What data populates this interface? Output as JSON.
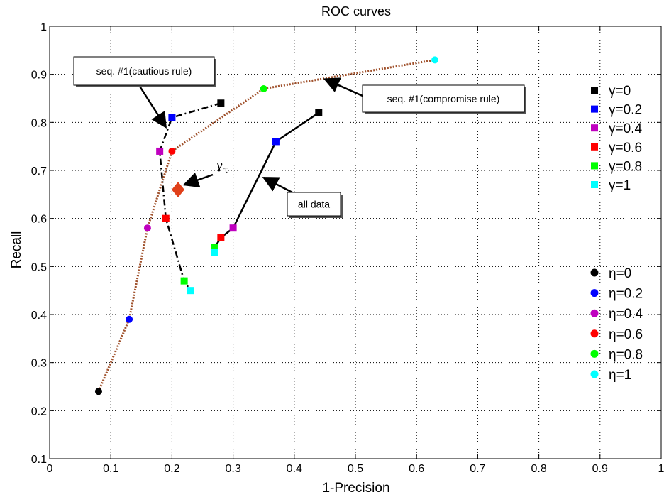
{
  "chart_data": {
    "type": "scatter",
    "title": "ROC curves",
    "xlabel": "1-Precision",
    "ylabel": "Recall",
    "xlim": [
      0,
      1
    ],
    "ylim": [
      0.1,
      1
    ],
    "xticks": [
      "0",
      "0.1",
      "0.2",
      "0.3",
      "0.4",
      "0.5",
      "0.6",
      "0.7",
      "0.8",
      "0.9",
      "1"
    ],
    "yticks": [
      "0.1",
      "0.2",
      "0.3",
      "0.4",
      "0.5",
      "0.6",
      "0.7",
      "0.8",
      "0.9",
      "1"
    ],
    "grid": true,
    "colors": {
      "c0": "#000000",
      "c02": "#0000ff",
      "c04": "#bf00bf",
      "c06": "#ff0000",
      "c08": "#00ff00",
      "c1": "#00ffff",
      "compromise": "#a0522d",
      "gamma_tau": "#e0401a"
    },
    "series": [
      {
        "name": "seq. #1(cautious rule)",
        "line_style": "dash-dot",
        "line_color": "#000000",
        "marker": "square",
        "points": [
          {
            "x": 0.28,
            "y": 0.84,
            "level": "c0"
          },
          {
            "x": 0.2,
            "y": 0.81,
            "level": "c02"
          },
          {
            "x": 0.18,
            "y": 0.74,
            "level": "c04"
          },
          {
            "x": 0.19,
            "y": 0.6,
            "level": "c06"
          },
          {
            "x": 0.22,
            "y": 0.47,
            "level": "c08"
          },
          {
            "x": 0.23,
            "y": 0.45,
            "level": "c1"
          }
        ]
      },
      {
        "name": "all data",
        "line_style": "solid",
        "line_color": "#000000",
        "marker": "square",
        "points": [
          {
            "x": 0.44,
            "y": 0.82,
            "level": "c0"
          },
          {
            "x": 0.37,
            "y": 0.76,
            "level": "c02"
          },
          {
            "x": 0.3,
            "y": 0.58,
            "level": "c04"
          },
          {
            "x": 0.28,
            "y": 0.56,
            "level": "c06"
          },
          {
            "x": 0.27,
            "y": 0.54,
            "level": "c08"
          },
          {
            "x": 0.27,
            "y": 0.53,
            "level": "c1"
          }
        ]
      },
      {
        "name": "seq. #1(compromise rule)",
        "line_style": "dotted",
        "line_color": "#a0522d",
        "marker": "circle",
        "points": [
          {
            "x": 0.08,
            "y": 0.24,
            "level": "c0"
          },
          {
            "x": 0.13,
            "y": 0.39,
            "level": "c02"
          },
          {
            "x": 0.16,
            "y": 0.58,
            "level": "c04"
          },
          {
            "x": 0.2,
            "y": 0.74,
            "level": "c06"
          },
          {
            "x": 0.35,
            "y": 0.87,
            "level": "c08"
          },
          {
            "x": 0.63,
            "y": 0.93,
            "level": "c1"
          }
        ]
      }
    ],
    "gamma_tau": {
      "x": 0.21,
      "y": 0.66,
      "label_main": "γ",
      "label_sub": "τ"
    },
    "annotations": [
      {
        "text": "seq. #1(cautious rule)",
        "target": {
          "x": 0.19,
          "y": 0.79
        }
      },
      {
        "text": "seq. #1(compromise rule)",
        "target": {
          "x": 0.45,
          "y": 0.89
        }
      },
      {
        "text": "all data",
        "target": {
          "x": 0.35,
          "y": 0.685
        }
      },
      {
        "text": "",
        "target": {
          "x": 0.22,
          "y": 0.67
        }
      }
    ],
    "legend_gamma": {
      "placement": "right-upper",
      "marker": "square",
      "entries": [
        {
          "label": "γ=0",
          "level": "c0"
        },
        {
          "label": "γ=0.2",
          "level": "c02"
        },
        {
          "label": "γ=0.4",
          "level": "c04"
        },
        {
          "label": "γ=0.6",
          "level": "c06"
        },
        {
          "label": "γ=0.8",
          "level": "c08"
        },
        {
          "label": "γ=1",
          "level": "c1"
        }
      ]
    },
    "legend_eta": {
      "placement": "right-lower",
      "marker": "circle",
      "entries": [
        {
          "label": "η=0",
          "level": "c0"
        },
        {
          "label": "η=0.2",
          "level": "c02"
        },
        {
          "label": "η=0.4",
          "level": "c04"
        },
        {
          "label": "η=0.6",
          "level": "c06"
        },
        {
          "label": "η=0.8",
          "level": "c08"
        },
        {
          "label": "η=1",
          "level": "c1"
        }
      ]
    }
  }
}
